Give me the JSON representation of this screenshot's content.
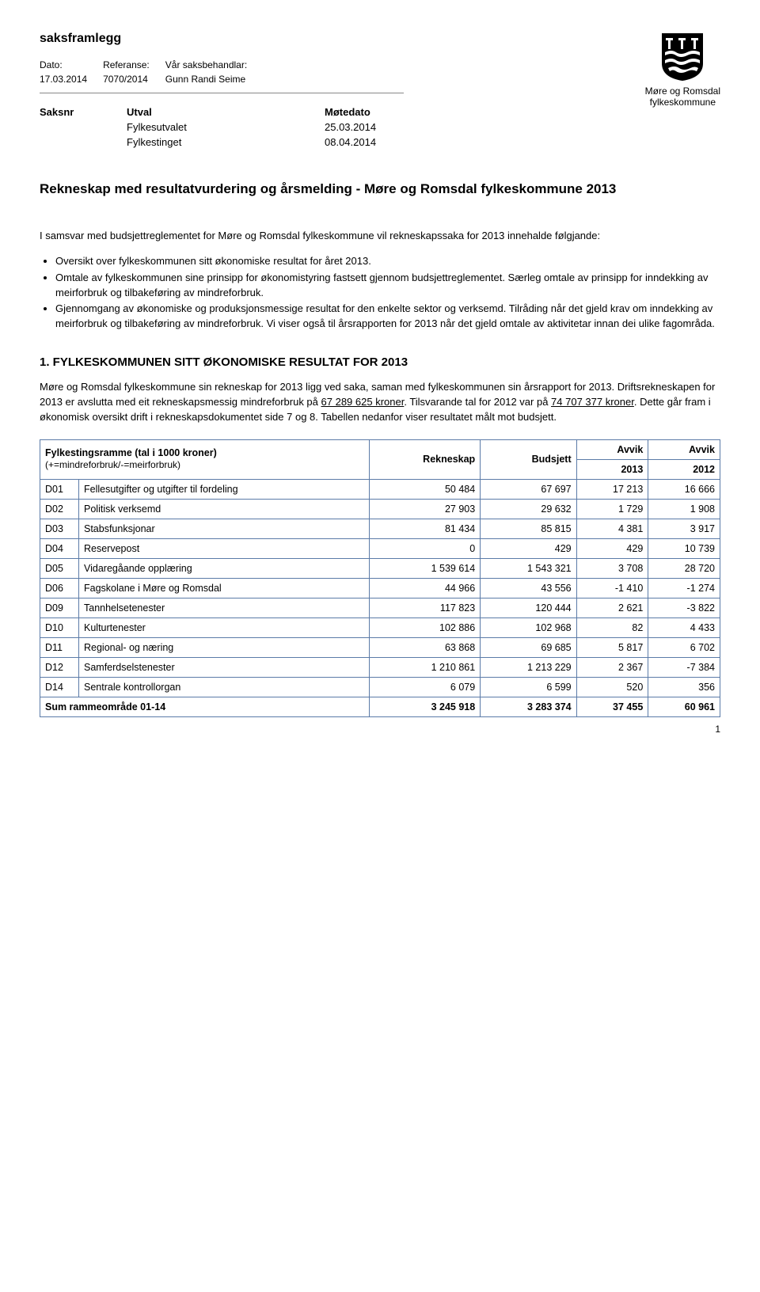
{
  "logo_text_line1": "Møre og Romsdal",
  "logo_text_line2": "fylkeskommune",
  "doc_type": "saksframlegg",
  "meta": {
    "labels": {
      "dato": "Dato:",
      "referanse": "Referanse:",
      "saksbeh": "Vår saksbehandlar:"
    },
    "values": {
      "dato": "17.03.2014",
      "referanse": "7070/2014",
      "saksbeh": "Gunn Randi Seime"
    }
  },
  "saks": {
    "headers": {
      "saksnr": "Saksnr",
      "utval": "Utval",
      "motedato": "Møtedato"
    },
    "rows": [
      {
        "saksnr": "",
        "utval": "Fylkesutvalet",
        "motedato": "25.03.2014"
      },
      {
        "saksnr": "",
        "utval": "Fylkestinget",
        "motedato": "08.04.2014"
      }
    ]
  },
  "title": "Rekneskap med resultatvurdering og årsmelding - Møre og Romsdal fylkeskommune 2013",
  "intro": "I samsvar med budsjettreglementet for Møre og Romsdal fylkeskommune vil rekneskapssaka for 2013 innehalde følgjande:",
  "bullets": [
    "Oversikt over fylkeskommunen sitt økonomiske resultat for året 2013.",
    "Omtale av fylkeskommunen sine prinsipp for økonomistyring fastsett gjennom budsjettreglementet. Særleg omtale av prinsipp for inndekking av meirforbruk og tilbakeføring av mindreforbruk.",
    "Gjennomgang av økonomiske og produksjonsmessige resultat for den enkelte sektor og verksemd. Tilråding når det gjeld krav om inndekking av meirforbruk og tilbakeføring av mindreforbruk. Vi viser også til årsrapporten for 2013 når det gjeld omtale av aktivitetar innan dei ulike fagområda."
  ],
  "section_heading": "1.    FYLKESKOMMUNEN SITT ØKONOMISKE RESULTAT FOR 2013",
  "section_para": "Møre og Romsdal fylkeskommune sin rekneskap for 2013 ligg ved saka, saman med fylkeskommunen sin årsrapport for 2013. Driftsrekneskapen for 2013 er avslutta med eit rekneskapsmessig mindreforbruk på <u>67 289 625 kroner</u>. Tilsvarande tal for 2012 var på <u>74 707 377 kroner</u>. Dette går fram i økonomisk oversikt drift i rekneskapsdokumentet side 7 og 8. Tabellen nedanfor viser resultatet målt mot budsjett.",
  "table": {
    "header": {
      "col1_line1": "Fylkestingsramme (tal i 1000 kroner)",
      "col1_line2": "(+=mindreforbruk/-=meirforbruk)",
      "rekneskap": "Rekneskap",
      "budsjett": "Budsjett",
      "avvik_label": "Avvik",
      "y2013": "2013",
      "y2012": "2012"
    },
    "rows": [
      {
        "code": "D01",
        "name": "Fellesutgifter og utgifter til fordeling",
        "rekneskap": "50 484",
        "budsjett": "67 697",
        "a2013": "17 213",
        "a2012": "16 666"
      },
      {
        "code": "D02",
        "name": "Politisk verksemd",
        "rekneskap": "27 903",
        "budsjett": "29 632",
        "a2013": "1 729",
        "a2012": "1 908"
      },
      {
        "code": "D03",
        "name": "Stabsfunksjonar",
        "rekneskap": "81 434",
        "budsjett": "85 815",
        "a2013": "4 381",
        "a2012": "3 917"
      },
      {
        "code": "D04",
        "name": "Reservepost",
        "rekneskap": "0",
        "budsjett": "429",
        "a2013": "429",
        "a2012": "10 739"
      },
      {
        "code": "D05",
        "name": "Vidaregåande opplæring",
        "rekneskap": "1 539 614",
        "budsjett": "1 543 321",
        "a2013": "3 708",
        "a2012": "28 720"
      },
      {
        "code": "D06",
        "name": "Fagskolane i Møre og Romsdal",
        "rekneskap": "44 966",
        "budsjett": "43 556",
        "a2013": "-1 410",
        "a2012": "-1 274"
      },
      {
        "code": "D09",
        "name": "Tannhelsetenester",
        "rekneskap": "117 823",
        "budsjett": "120 444",
        "a2013": "2 621",
        "a2012": "-3 822"
      },
      {
        "code": "D10",
        "name": "Kulturtenester",
        "rekneskap": "102 886",
        "budsjett": "102 968",
        "a2013": "82",
        "a2012": "4 433"
      },
      {
        "code": "D11",
        "name": "Regional- og næring",
        "rekneskap": "63 868",
        "budsjett": "69 685",
        "a2013": "5 817",
        "a2012": "6 702"
      },
      {
        "code": "D12",
        "name": "Samferdselstenester",
        "rekneskap": "1 210 861",
        "budsjett": "1 213 229",
        "a2013": "2 367",
        "a2012": "-7 384"
      },
      {
        "code": "D14",
        "name": "Sentrale kontrollorgan",
        "rekneskap": "6 079",
        "budsjett": "6 599",
        "a2013": "520",
        "a2012": "356"
      }
    ],
    "sum": {
      "label": "Sum rammeområde 01-14",
      "rekneskap": "3 245 918",
      "budsjett": "3 283 374",
      "a2013": "37 455",
      "a2012": "60 961"
    }
  },
  "page_number": "1"
}
